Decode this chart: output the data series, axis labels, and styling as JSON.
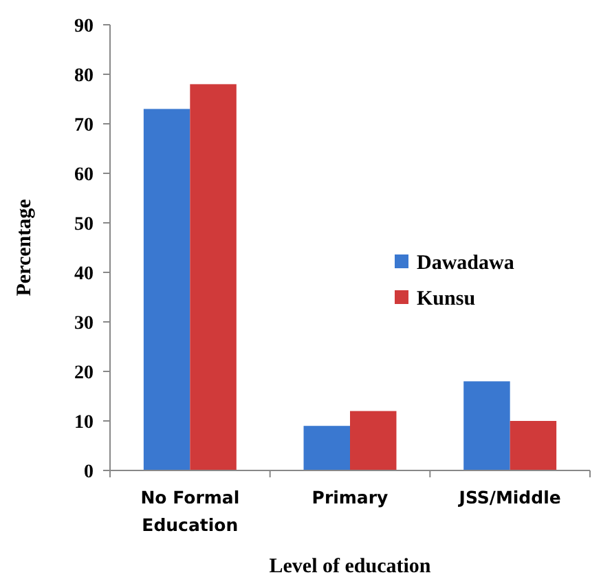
{
  "chart_data": {
    "type": "bar",
    "xlabel": "Level of education",
    "ylabel": "Percentage",
    "categories": [
      "No Formal Education",
      "Primary",
      "JSS/Middle"
    ],
    "series": [
      {
        "name": "Dawadawa",
        "color": "#3a78d0",
        "values": [
          73,
          9,
          18
        ]
      },
      {
        "name": "Kunsu",
        "color": "#d03a3a",
        "values": [
          78,
          12,
          10
        ]
      }
    ],
    "ylim": [
      0,
      90
    ],
    "yticks": [
      0,
      10,
      20,
      30,
      40,
      50,
      60,
      70,
      80,
      90
    ],
    "grid": false,
    "legend": "right"
  }
}
